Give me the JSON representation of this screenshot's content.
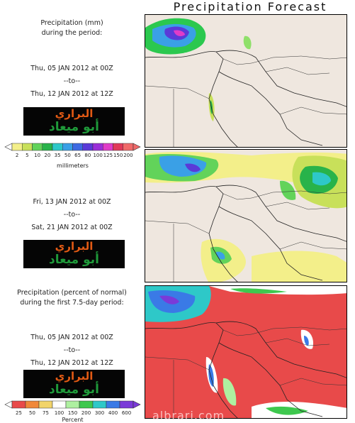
{
  "title": "Precipitation Forecast",
  "panel1": {
    "lines": [
      "Precipitation (mm)",
      "during the period:",
      "Thu, 05 JAN 2012 at 00Z",
      "--to--",
      "Thu, 12 JAN 2012 at 12Z"
    ]
  },
  "panel2": {
    "lines": [
      "Fri, 13 JAN 2012 at 00Z",
      "--to--",
      "Sat, 21 JAN 2012 at 00Z"
    ]
  },
  "panel3": {
    "lines": [
      "Precipitation (percent of normal)",
      "during the first 7.5-day period:",
      "Thu, 05 JAN 2012 at 00Z",
      "--to--",
      "Thu, 12 JAN 2012 at 12Z"
    ]
  },
  "logo": {
    "line1": "البراري",
    "line2": "أبو ميعاد",
    "color1": "#e25a14",
    "color2": "#1f9a3a"
  },
  "legend_mm": {
    "ticks": [
      "2",
      "5",
      "10",
      "20",
      "35",
      "50",
      "65",
      "80",
      "100",
      "125",
      "150",
      "200"
    ],
    "unit": "millimeters",
    "colors": [
      "#f3ef8a",
      "#c8e05a",
      "#62d35a",
      "#28b34a",
      "#2ec8c8",
      "#3aa0e6",
      "#3e6ae2",
      "#5a3ad8",
      "#9a2ed8",
      "#e03cc8",
      "#e03a5a",
      "#f06a6a"
    ]
  },
  "legend_pct": {
    "ticks": [
      "25",
      "50",
      "75",
      "100",
      "150",
      "200",
      "300",
      "400",
      "600"
    ],
    "unit": "Percent",
    "colors": [
      "#e84a4a",
      "#f0883a",
      "#f2d46a",
      "#ffffff",
      "#aef0a0",
      "#3ec84e",
      "#2ec8c8",
      "#3a7ae6",
      "#7a3ad8"
    ]
  },
  "watermark": "albrari.com"
}
